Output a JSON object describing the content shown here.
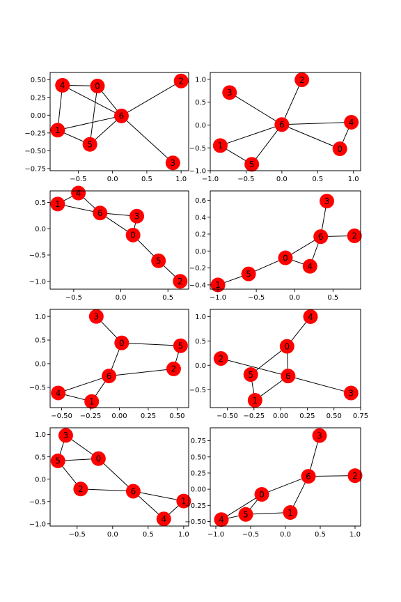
{
  "colors": {
    "node": "#ff0000",
    "edge": "#000000",
    "text": "#000000",
    "background": "#ffffff"
  },
  "chart_data": [
    {
      "type": "network",
      "xlim": [
        -0.91,
        1.11
      ],
      "ylim": [
        -0.78,
        0.6
      ],
      "xticks": [
        {
          "v": -0.5,
          "label": "−0.5"
        },
        {
          "v": 0.0,
          "label": "0.0"
        },
        {
          "v": 0.5,
          "label": "0.5"
        },
        {
          "v": 1.0,
          "label": "1.0"
        }
      ],
      "yticks": [
        {
          "v": -0.75,
          "label": "−0.75"
        },
        {
          "v": -0.5,
          "label": "−0.50"
        },
        {
          "v": -0.25,
          "label": "−0.25"
        },
        {
          "v": 0.0,
          "label": "0.00"
        },
        {
          "v": 0.25,
          "label": "0.25"
        },
        {
          "v": 0.5,
          "label": "0.50"
        }
      ],
      "nodes": [
        {
          "id": "0",
          "x": -0.22,
          "y": 0.41
        },
        {
          "id": "1",
          "x": -0.8,
          "y": -0.21
        },
        {
          "id": "2",
          "x": 1.0,
          "y": 0.48
        },
        {
          "id": "3",
          "x": 0.88,
          "y": -0.67
        },
        {
          "id": "4",
          "x": -0.73,
          "y": 0.42
        },
        {
          "id": "5",
          "x": -0.33,
          "y": -0.41
        },
        {
          "id": "6",
          "x": 0.13,
          "y": -0.01
        }
      ],
      "edges": [
        [
          "0",
          "5"
        ],
        [
          "0",
          "6"
        ],
        [
          "4",
          "0"
        ],
        [
          "4",
          "1"
        ],
        [
          "4",
          "6"
        ],
        [
          "1",
          "5"
        ],
        [
          "1",
          "6"
        ],
        [
          "5",
          "6"
        ],
        [
          "6",
          "2"
        ],
        [
          "6",
          "3"
        ]
      ]
    },
    {
      "type": "network",
      "xlim": [
        -1.0,
        1.1
      ],
      "ylim": [
        -1.0,
        1.15
      ],
      "xticks": [
        {
          "v": -1.0,
          "label": "−1.0"
        },
        {
          "v": -0.5,
          "label": "−0.5"
        },
        {
          "v": 0.0,
          "label": "0.0"
        },
        {
          "v": 0.5,
          "label": "0.5"
        },
        {
          "v": 1.0,
          "label": "1.0"
        }
      ],
      "yticks": [
        {
          "v": -1.0,
          "label": "−1.0"
        },
        {
          "v": -0.5,
          "label": "−0.5"
        },
        {
          "v": 0.0,
          "label": "0.0"
        },
        {
          "v": 0.5,
          "label": "0.5"
        },
        {
          "v": 1.0,
          "label": "1.0"
        }
      ],
      "nodes": [
        {
          "id": "0",
          "x": 0.81,
          "y": -0.52
        },
        {
          "id": "1",
          "x": -0.86,
          "y": -0.45
        },
        {
          "id": "2",
          "x": 0.28,
          "y": 0.99
        },
        {
          "id": "3",
          "x": -0.73,
          "y": 0.71
        },
        {
          "id": "4",
          "x": 0.97,
          "y": 0.06
        },
        {
          "id": "5",
          "x": -0.42,
          "y": -0.86
        },
        {
          "id": "6",
          "x": 0.0,
          "y": 0.01
        }
      ],
      "edges": [
        [
          "6",
          "2"
        ],
        [
          "6",
          "3"
        ],
        [
          "6",
          "4"
        ],
        [
          "6",
          "0"
        ],
        [
          "6",
          "1"
        ],
        [
          "6",
          "5"
        ],
        [
          "1",
          "5"
        ],
        [
          "4",
          "0"
        ]
      ]
    },
    {
      "type": "network",
      "xlim": [
        -0.75,
        0.72
      ],
      "ylim": [
        -1.15,
        0.72
      ],
      "xticks": [
        {
          "v": -0.5,
          "label": "−0.5"
        },
        {
          "v": 0.0,
          "label": "0.0"
        },
        {
          "v": 0.5,
          "label": "0.5"
        }
      ],
      "yticks": [
        {
          "v": -1.0,
          "label": "−1.0"
        },
        {
          "v": -0.5,
          "label": "−0.5"
        },
        {
          "v": 0.0,
          "label": "0.0"
        },
        {
          "v": 0.5,
          "label": "0.5"
        }
      ],
      "nodes": [
        {
          "id": "0",
          "x": 0.13,
          "y": -0.12
        },
        {
          "id": "1",
          "x": -0.67,
          "y": 0.47
        },
        {
          "id": "2",
          "x": 0.63,
          "y": -1.0
        },
        {
          "id": "3",
          "x": 0.17,
          "y": 0.24
        },
        {
          "id": "4",
          "x": -0.45,
          "y": 0.68
        },
        {
          "id": "5",
          "x": 0.4,
          "y": -0.61
        },
        {
          "id": "6",
          "x": -0.22,
          "y": 0.3
        }
      ],
      "edges": [
        [
          "1",
          "4"
        ],
        [
          "1",
          "6"
        ],
        [
          "4",
          "6"
        ],
        [
          "6",
          "3"
        ],
        [
          "6",
          "0"
        ],
        [
          "3",
          "0"
        ],
        [
          "0",
          "5"
        ],
        [
          "5",
          "2"
        ]
      ]
    },
    {
      "type": "network",
      "xlim": [
        -1.1,
        0.86
      ],
      "ylim": [
        -0.45,
        0.71
      ],
      "xticks": [
        {
          "v": -1.0,
          "label": "−1.0"
        },
        {
          "v": -0.5,
          "label": "−0.5"
        },
        {
          "v": 0.0,
          "label": "0.0"
        },
        {
          "v": 0.5,
          "label": "0.5"
        }
      ],
      "yticks": [
        {
          "v": -0.4,
          "label": "−0.4"
        },
        {
          "v": -0.2,
          "label": "−0.2"
        },
        {
          "v": 0.0,
          "label": "0.0"
        },
        {
          "v": 0.2,
          "label": "0.2"
        },
        {
          "v": 0.4,
          "label": "0.4"
        },
        {
          "v": 0.6,
          "label": "0.6"
        }
      ],
      "nodes": [
        {
          "id": "0",
          "x": -0.12,
          "y": -0.08
        },
        {
          "id": "1",
          "x": -1.0,
          "y": -0.4
        },
        {
          "id": "2",
          "x": 0.78,
          "y": 0.18
        },
        {
          "id": "3",
          "x": 0.42,
          "y": 0.59
        },
        {
          "id": "4",
          "x": 0.2,
          "y": -0.18
        },
        {
          "id": "5",
          "x": -0.6,
          "y": -0.27
        },
        {
          "id": "6",
          "x": 0.34,
          "y": 0.17
        }
      ],
      "edges": [
        [
          "1",
          "5"
        ],
        [
          "5",
          "0"
        ],
        [
          "0",
          "4"
        ],
        [
          "0",
          "6"
        ],
        [
          "4",
          "6"
        ],
        [
          "6",
          "3"
        ],
        [
          "6",
          "2"
        ]
      ]
    },
    {
      "type": "network",
      "xlim": [
        -0.6,
        0.6
      ],
      "ylim": [
        -0.93,
        1.15
      ],
      "xticks": [
        {
          "v": -0.5,
          "label": "−0.50"
        },
        {
          "v": -0.25,
          "label": "−0.25"
        },
        {
          "v": 0.0,
          "label": "0.00"
        },
        {
          "v": 0.25,
          "label": "0.25"
        },
        {
          "v": 0.5,
          "label": "0.50"
        }
      ],
      "yticks": [
        {
          "v": -0.5,
          "label": "−0.5"
        },
        {
          "v": 0.0,
          "label": "0.0"
        },
        {
          "v": 0.5,
          "label": "0.5"
        },
        {
          "v": 1.0,
          "label": "1.0"
        }
      ],
      "nodes": [
        {
          "id": "0",
          "x": 0.02,
          "y": 0.44
        },
        {
          "id": "1",
          "x": -0.24,
          "y": -0.8
        },
        {
          "id": "2",
          "x": 0.47,
          "y": -0.11
        },
        {
          "id": "3",
          "x": -0.2,
          "y": 1.0
        },
        {
          "id": "4",
          "x": -0.53,
          "y": -0.62
        },
        {
          "id": "5",
          "x": 0.53,
          "y": 0.38
        },
        {
          "id": "6",
          "x": -0.09,
          "y": -0.26
        }
      ],
      "edges": [
        [
          "3",
          "0"
        ],
        [
          "0",
          "5"
        ],
        [
          "0",
          "6"
        ],
        [
          "5",
          "2"
        ],
        [
          "2",
          "6"
        ],
        [
          "6",
          "4"
        ],
        [
          "6",
          "1"
        ],
        [
          "4",
          "1"
        ]
      ]
    },
    {
      "type": "network",
      "xlim": [
        -0.66,
        0.75
      ],
      "ylim": [
        -0.87,
        1.15
      ],
      "xticks": [
        {
          "v": -0.5,
          "label": "−0.50"
        },
        {
          "v": -0.25,
          "label": "−0.25"
        },
        {
          "v": 0.0,
          "label": "0.00"
        },
        {
          "v": 0.25,
          "label": "0.25"
        },
        {
          "v": 0.5,
          "label": "0.50"
        },
        {
          "v": 0.75,
          "label": "0.75"
        }
      ],
      "yticks": [
        {
          "v": -0.5,
          "label": "−0.5"
        },
        {
          "v": 0.0,
          "label": "0.0"
        },
        {
          "v": 0.5,
          "label": "0.5"
        },
        {
          "v": 1.0,
          "label": "1.0"
        }
      ],
      "nodes": [
        {
          "id": "0",
          "x": 0.06,
          "y": 0.39
        },
        {
          "id": "1",
          "x": -0.24,
          "y": -0.72
        },
        {
          "id": "2",
          "x": -0.56,
          "y": 0.14
        },
        {
          "id": "3",
          "x": 0.66,
          "y": -0.57
        },
        {
          "id": "4",
          "x": 0.28,
          "y": 1.0
        },
        {
          "id": "5",
          "x": -0.28,
          "y": -0.19
        },
        {
          "id": "6",
          "x": 0.07,
          "y": -0.22
        }
      ],
      "edges": [
        [
          "4",
          "0"
        ],
        [
          "0",
          "6"
        ],
        [
          "0",
          "5"
        ],
        [
          "2",
          "6"
        ],
        [
          "6",
          "3"
        ],
        [
          "6",
          "1"
        ],
        [
          "5",
          "1"
        ]
      ]
    },
    {
      "type": "network",
      "xlim": [
        -0.88,
        1.07
      ],
      "ylim": [
        -1.05,
        1.15
      ],
      "xticks": [
        {
          "v": -0.5,
          "label": "−0.5"
        },
        {
          "v": 0.0,
          "label": "0.0"
        },
        {
          "v": 0.5,
          "label": "0.5"
        },
        {
          "v": 1.0,
          "label": "1.0"
        }
      ],
      "yticks": [
        {
          "v": -1.0,
          "label": "−1.0"
        },
        {
          "v": -0.5,
          "label": "−0.5"
        },
        {
          "v": 0.0,
          "label": "0.0"
        },
        {
          "v": 0.5,
          "label": "0.5"
        },
        {
          "v": 1.0,
          "label": "1.0"
        }
      ],
      "nodes": [
        {
          "id": "0",
          "x": -0.2,
          "y": 0.46
        },
        {
          "id": "1",
          "x": 1.0,
          "y": -0.49
        },
        {
          "id": "2",
          "x": -0.45,
          "y": -0.22
        },
        {
          "id": "3",
          "x": -0.66,
          "y": 0.98
        },
        {
          "id": "4",
          "x": 0.72,
          "y": -0.89
        },
        {
          "id": "5",
          "x": -0.77,
          "y": 0.41
        },
        {
          "id": "6",
          "x": 0.29,
          "y": -0.27
        }
      ],
      "edges": [
        [
          "3",
          "5"
        ],
        [
          "3",
          "0"
        ],
        [
          "5",
          "0"
        ],
        [
          "5",
          "2"
        ],
        [
          "0",
          "6"
        ],
        [
          "2",
          "6"
        ],
        [
          "6",
          "1"
        ],
        [
          "6",
          "4"
        ],
        [
          "1",
          "4"
        ]
      ]
    },
    {
      "type": "network",
      "xlim": [
        -1.08,
        1.08
      ],
      "ylim": [
        -0.57,
        0.95
      ],
      "xticks": [
        {
          "v": -1.0,
          "label": "−1.0"
        },
        {
          "v": -0.5,
          "label": "−0.5"
        },
        {
          "v": 0.0,
          "label": "0.0"
        },
        {
          "v": 0.5,
          "label": "0.5"
        },
        {
          "v": 1.0,
          "label": "1.0"
        }
      ],
      "yticks": [
        {
          "v": -0.5,
          "label": "−0.50"
        },
        {
          "v": -0.25,
          "label": "−0.25"
        },
        {
          "v": 0.0,
          "label": "0.00"
        },
        {
          "v": 0.25,
          "label": "0.25"
        },
        {
          "v": 0.5,
          "label": "0.50"
        },
        {
          "v": 0.75,
          "label": "0.75"
        }
      ],
      "nodes": [
        {
          "id": "0",
          "x": -0.34,
          "y": -0.08
        },
        {
          "id": "1",
          "x": 0.07,
          "y": -0.36
        },
        {
          "id": "2",
          "x": 1.0,
          "y": 0.21
        },
        {
          "id": "3",
          "x": 0.49,
          "y": 0.83
        },
        {
          "id": "4",
          "x": -0.92,
          "y": -0.47
        },
        {
          "id": "5",
          "x": -0.57,
          "y": -0.39
        },
        {
          "id": "6",
          "x": 0.33,
          "y": 0.2
        }
      ],
      "edges": [
        [
          "4",
          "0"
        ],
        [
          "4",
          "5"
        ],
        [
          "5",
          "0"
        ],
        [
          "0",
          "6"
        ],
        [
          "5",
          "1"
        ],
        [
          "1",
          "6"
        ],
        [
          "6",
          "3"
        ],
        [
          "6",
          "2"
        ]
      ]
    }
  ]
}
